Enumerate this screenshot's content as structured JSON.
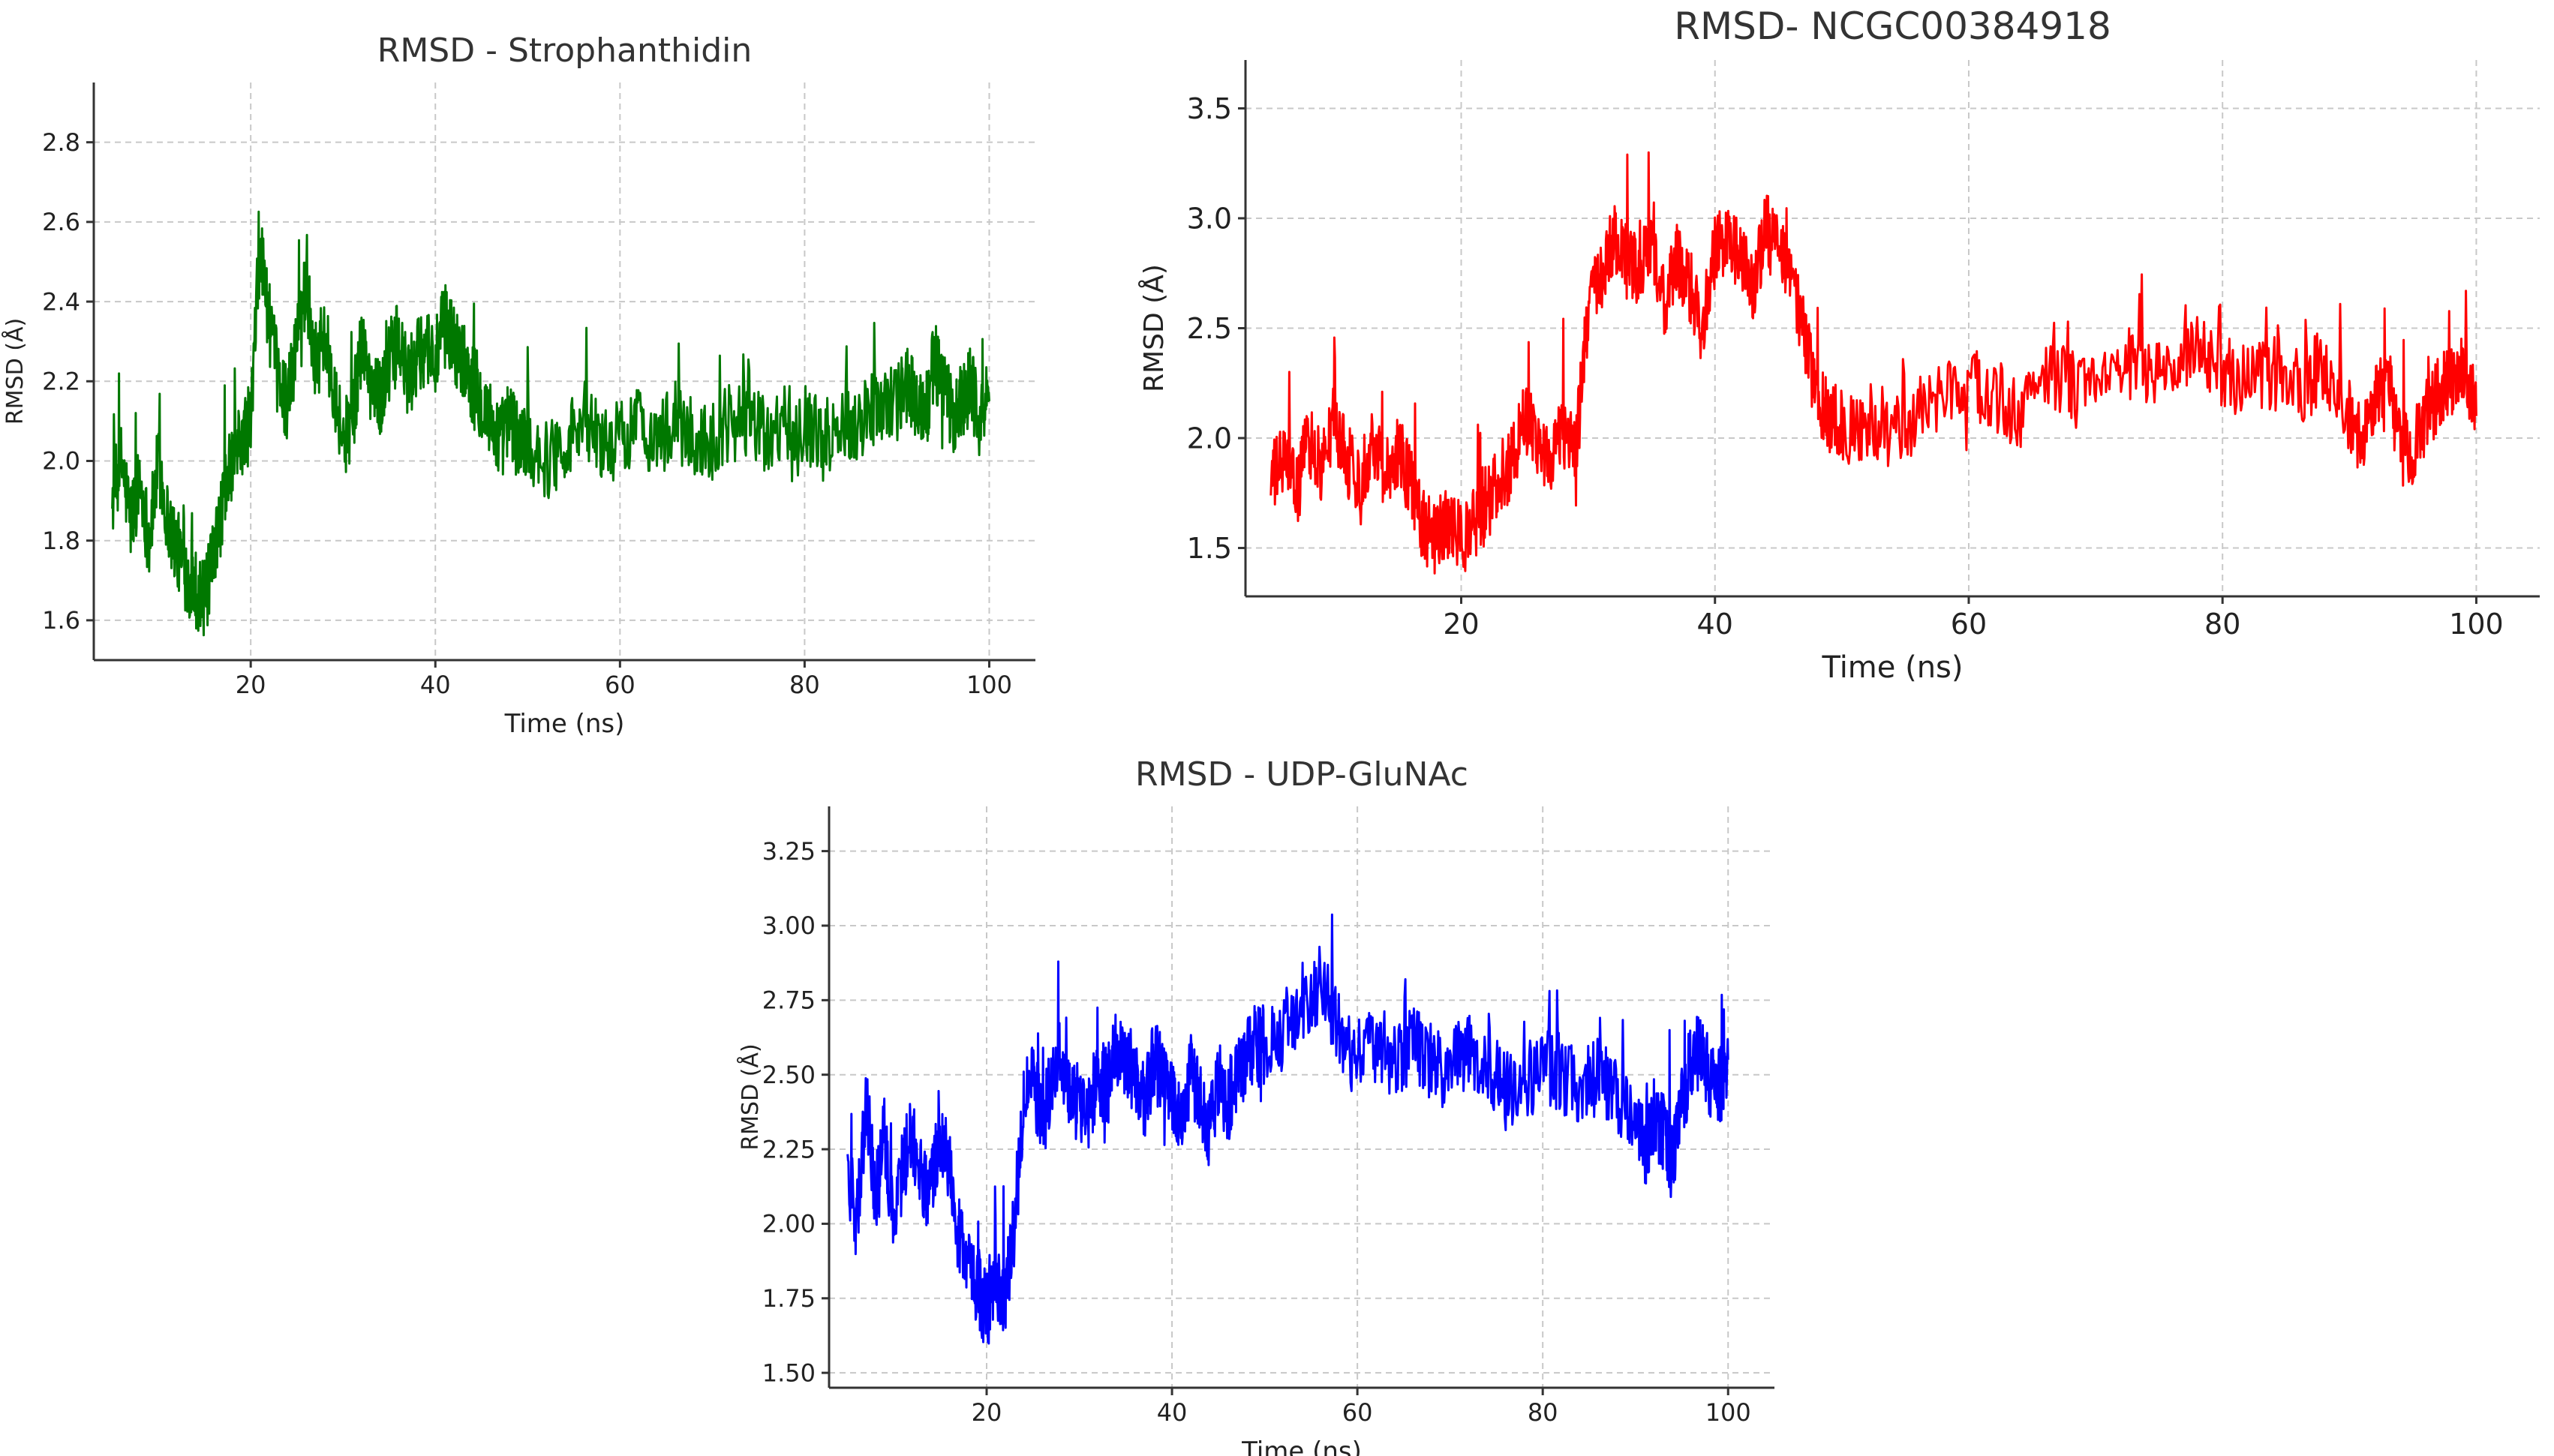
{
  "chart_data": [
    {
      "type": "line",
      "title": "RMSD - Strophanthidin",
      "xlabel": "Time (ns)",
      "ylabel": "RMSD (Å)",
      "xlim": [
        3,
        105
      ],
      "ylim": [
        1.5,
        2.95
      ],
      "xticks": [
        20,
        40,
        60,
        80,
        100
      ],
      "yticks": [
        1.6,
        1.8,
        2.0,
        2.2,
        2.4,
        2.6,
        2.8
      ],
      "tick_decimals": 1,
      "grid": true,
      "color": "#007800",
      "series": [
        {
          "x": [
            5,
            6,
            7,
            8,
            9,
            10,
            11,
            12,
            13,
            14,
            15,
            16,
            17,
            18,
            19,
            20,
            21,
            22,
            23,
            24,
            25,
            26,
            27,
            28,
            29,
            30,
            31,
            32,
            33,
            34,
            35,
            36,
            37,
            38,
            39,
            40,
            41,
            42,
            43,
            44,
            45,
            46,
            47,
            48,
            49,
            50,
            52,
            54,
            56,
            58,
            60,
            62,
            64,
            66,
            68,
            70,
            72,
            74,
            76,
            78,
            80,
            82,
            84,
            86,
            88,
            90,
            91,
            92,
            93,
            94,
            95,
            96,
            97,
            98,
            99,
            100
          ],
          "y": [
            1.9,
            2.0,
            1.85,
            1.95,
            1.8,
            2.0,
            1.85,
            1.78,
            1.72,
            1.68,
            1.65,
            1.75,
            1.9,
            2.0,
            2.05,
            2.1,
            2.55,
            2.35,
            2.2,
            2.15,
            2.3,
            2.45,
            2.25,
            2.3,
            2.2,
            2.05,
            2.1,
            2.3,
            2.2,
            2.15,
            2.25,
            2.3,
            2.2,
            2.25,
            2.3,
            2.25,
            2.35,
            2.3,
            2.25,
            2.2,
            2.15,
            2.1,
            2.05,
            2.1,
            2.05,
            2.05,
            2.0,
            2.05,
            2.1,
            2.05,
            2.05,
            2.1,
            2.05,
            2.1,
            2.05,
            2.05,
            2.1,
            2.1,
            2.05,
            2.1,
            2.1,
            2.05,
            2.1,
            2.1,
            2.15,
            2.15,
            2.2,
            2.15,
            2.1,
            2.25,
            2.2,
            2.1,
            2.15,
            2.2,
            2.1,
            2.15
          ]
        }
      ]
    },
    {
      "type": "line",
      "title": "RMSD- NCGC00384918",
      "xlabel": "Time (ns)",
      "ylabel": "RMSD (Å)",
      "xlim": [
        3,
        105
      ],
      "ylim": [
        1.28,
        3.72
      ],
      "xticks": [
        20,
        40,
        60,
        80,
        100
      ],
      "yticks": [
        1.5,
        2.0,
        2.5,
        3.0,
        3.5
      ],
      "tick_decimals": 1,
      "grid": true,
      "color": "#ff0000",
      "series": [
        {
          "x": [
            5,
            6,
            7,
            8,
            9,
            10,
            11,
            12,
            13,
            14,
            15,
            16,
            17,
            18,
            19,
            20,
            21,
            22,
            23,
            24,
            25,
            26,
            27,
            28,
            29,
            30,
            31,
            32,
            33,
            34,
            35,
            36,
            37,
            38,
            39,
            40,
            41,
            42,
            43,
            44,
            45,
            46,
            47,
            48,
            49,
            50,
            52,
            54,
            56,
            58,
            60,
            62,
            64,
            66,
            68,
            70,
            72,
            74,
            76,
            78,
            80,
            82,
            84,
            86,
            88,
            90,
            91,
            92,
            93,
            94,
            95,
            96,
            97,
            98,
            99,
            100
          ],
          "y": [
            1.8,
            1.9,
            1.75,
            2.0,
            1.85,
            2.1,
            1.9,
            1.8,
            2.0,
            1.85,
            1.95,
            1.8,
            1.6,
            1.55,
            1.6,
            1.55,
            1.6,
            1.7,
            1.8,
            1.9,
            2.1,
            2.0,
            1.9,
            2.05,
            1.9,
            2.6,
            2.7,
            2.9,
            2.8,
            2.75,
            2.9,
            2.6,
            2.8,
            2.7,
            2.5,
            2.85,
            2.9,
            2.8,
            2.7,
            2.95,
            2.85,
            2.7,
            2.5,
            2.2,
            2.1,
            2.05,
            2.0,
            2.05,
            2.1,
            2.2,
            2.25,
            2.2,
            2.1,
            2.3,
            2.25,
            2.2,
            2.35,
            2.3,
            2.25,
            2.4,
            2.3,
            2.25,
            2.3,
            2.2,
            2.35,
            2.1,
            2.0,
            2.2,
            2.3,
            1.95,
            1.95,
            2.1,
            2.2,
            2.25,
            2.35,
            2.1
          ]
        }
      ]
    },
    {
      "type": "line",
      "title": "RMSD - UDP-GluNAc",
      "xlabel": "Time (ns)",
      "ylabel": "RMSD (Å)",
      "xlim": [
        3,
        105
      ],
      "ylim": [
        1.45,
        3.4
      ],
      "xticks": [
        20,
        40,
        60,
        80,
        100
      ],
      "yticks": [
        1.5,
        1.75,
        2.0,
        2.25,
        2.5,
        2.75,
        3.0,
        3.25
      ],
      "tick_decimals": 2,
      "grid": true,
      "color": "#0000ff",
      "series": [
        {
          "x": [
            5,
            6,
            7,
            8,
            9,
            10,
            11,
            12,
            13,
            14,
            15,
            16,
            17,
            18,
            19,
            20,
            21,
            22,
            23,
            24,
            25,
            26,
            27,
            28,
            29,
            30,
            31,
            32,
            33,
            34,
            35,
            36,
            37,
            38,
            39,
            40,
            41,
            42,
            43,
            44,
            45,
            46,
            47,
            48,
            49,
            50,
            52,
            54,
            56,
            58,
            60,
            62,
            64,
            66,
            68,
            70,
            72,
            74,
            76,
            78,
            80,
            82,
            84,
            86,
            88,
            90,
            91,
            92,
            93,
            94,
            95,
            96,
            97,
            98,
            99,
            100
          ],
          "y": [
            2.2,
            2.0,
            2.4,
            2.1,
            2.3,
            2.0,
            2.2,
            2.3,
            2.15,
            2.1,
            2.3,
            2.2,
            1.95,
            1.85,
            1.8,
            1.7,
            1.8,
            1.75,
            2.0,
            2.4,
            2.5,
            2.3,
            2.5,
            2.55,
            2.45,
            2.4,
            2.35,
            2.5,
            2.45,
            2.6,
            2.55,
            2.5,
            2.4,
            2.55,
            2.5,
            2.45,
            2.35,
            2.5,
            2.45,
            2.3,
            2.5,
            2.4,
            2.5,
            2.55,
            2.6,
            2.6,
            2.65,
            2.75,
            2.8,
            2.65,
            2.55,
            2.6,
            2.55,
            2.6,
            2.55,
            2.5,
            2.6,
            2.55,
            2.45,
            2.4,
            2.55,
            2.5,
            2.45,
            2.5,
            2.45,
            2.3,
            2.25,
            2.35,
            2.3,
            2.2,
            2.4,
            2.55,
            2.6,
            2.5,
            2.45,
            2.55
          ]
        }
      ]
    }
  ]
}
